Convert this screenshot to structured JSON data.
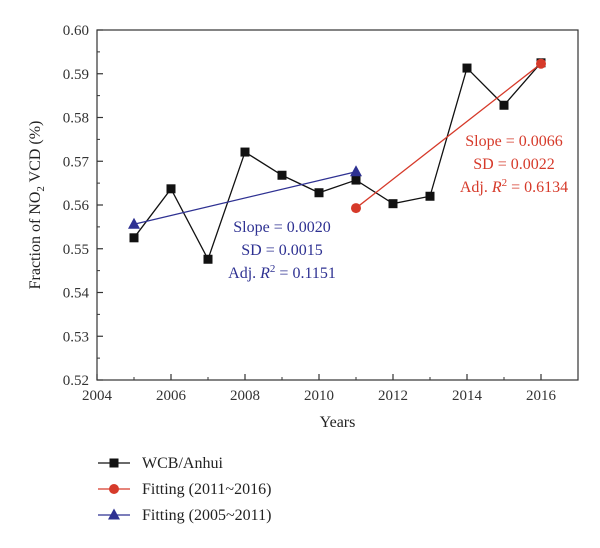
{
  "chart_data": {
    "type": "line",
    "title": "",
    "xlabel": "Years",
    "ylabel": "Fraction of NO₂ VCD (%)",
    "xlim": [
      2004,
      2017
    ],
    "ylim": [
      0.52,
      0.6
    ],
    "x_ticks": [
      "2004",
      "2006",
      "2008",
      "2010",
      "2012",
      "2014",
      "2016"
    ],
    "y_ticks": [
      "0.52",
      "0.53",
      "0.54",
      "0.55",
      "0.56",
      "0.57",
      "0.58",
      "0.59",
      "0.60"
    ],
    "grid": false,
    "legend_placement": "bottom",
    "series": [
      {
        "name": "WCB/Anhui",
        "marker": "square",
        "color": "#111111",
        "x": [
          2005,
          2006,
          2007,
          2008,
          2009,
          2010,
          2011,
          2012,
          2013,
          2014,
          2015,
          2016
        ],
        "y": [
          0.5525,
          0.5637,
          0.5476,
          0.5721,
          0.5668,
          0.5628,
          0.5657,
          0.5603,
          0.562,
          0.5913,
          0.5828,
          0.5925
        ]
      },
      {
        "name": "Fitting (2011~2016)",
        "marker": "circle",
        "color": "#d63a2a",
        "x": [
          2011,
          2016
        ],
        "y": [
          0.5593,
          0.5923
        ]
      },
      {
        "name": "Fitting (2005~2011)",
        "marker": "triangle",
        "color": "#2e3192",
        "x": [
          2005,
          2011
        ],
        "y": [
          0.5556,
          0.5676
        ]
      }
    ],
    "annotations": [
      {
        "color": "#d63a2a",
        "lines": [
          "Slope = 0.0066",
          "SD = 0.0022",
          "Adj. R2 = 0.6134"
        ]
      },
      {
        "color": "#2e3192",
        "lines": [
          "Slope = 0.0020",
          "SD = 0.0015",
          "Adj. R2 = 0.1151"
        ]
      }
    ]
  }
}
